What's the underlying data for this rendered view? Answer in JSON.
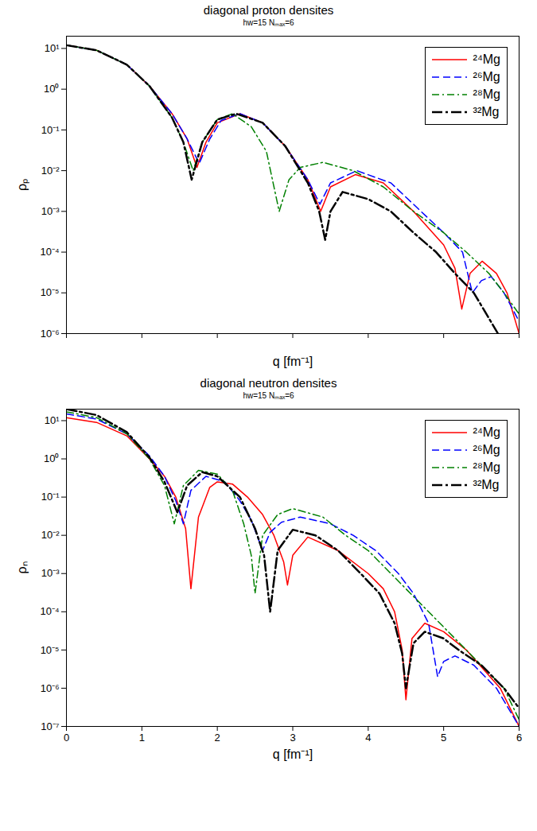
{
  "chart_data": [
    {
      "type": "line",
      "title": "diagonal proton densites",
      "subtitle": "hw=15 Nₘₐₓ=6",
      "x_label": "q [fm⁻¹]",
      "y_label": "ρₚ",
      "log": "y",
      "legend": "upper right",
      "tick_labels": "y",
      "xlim": [
        0,
        6
      ],
      "xticks": [
        0,
        1,
        2,
        3,
        4,
        5,
        6
      ],
      "ylim": [
        1e-06,
        20
      ],
      "yticks": [
        {
          "value": 1e-06,
          "label": "10⁻⁶"
        },
        {
          "value": 1e-05,
          "label": "10⁻⁵"
        },
        {
          "value": 0.0001,
          "label": "10⁻⁴"
        },
        {
          "value": 0.001,
          "label": "10⁻³"
        },
        {
          "value": 0.01,
          "label": "10⁻²"
        },
        {
          "value": 0.1,
          "label": "10⁻¹"
        },
        {
          "value": 1,
          "label": "10⁰"
        },
        {
          "value": 10,
          "label": "10¹"
        }
      ],
      "series": [
        {
          "name": "²⁴Mg",
          "color": "#ff0000",
          "line_style": "solid",
          "x": [
            0,
            0.4,
            0.8,
            1.1,
            1.4,
            1.6,
            1.73,
            1.85,
            2.0,
            2.3,
            2.6,
            2.9,
            3.2,
            3.37,
            3.5,
            3.83,
            4.2,
            4.6,
            5.0,
            5.15,
            5.24,
            5.35,
            5.51,
            5.7,
            5.84,
            6.0
          ],
          "values": [
            12,
            9,
            4,
            1.2,
            0.25,
            0.06,
            0.012,
            0.05,
            0.15,
            0.25,
            0.15,
            0.04,
            0.006,
            0.001,
            0.004,
            0.008,
            0.005,
            0.001,
            0.00015,
            4e-05,
            4e-06,
            3e-05,
            6e-05,
            3e-05,
            1e-05,
            1e-06
          ]
        },
        {
          "name": "²⁶Mg",
          "color": "#0000ff",
          "line_style": "dashed",
          "x": [
            0,
            0.4,
            0.8,
            1.1,
            1.4,
            1.6,
            1.76,
            1.9,
            2.05,
            2.3,
            2.6,
            2.9,
            3.2,
            3.36,
            3.5,
            3.85,
            4.3,
            4.7,
            5.0,
            5.25,
            5.38,
            5.5,
            5.63,
            5.8,
            6.0
          ],
          "values": [
            12,
            9,
            4,
            1.2,
            0.25,
            0.06,
            0.015,
            0.06,
            0.17,
            0.25,
            0.15,
            0.04,
            0.006,
            0.0015,
            0.005,
            0.01,
            0.005,
            0.001,
            0.0003,
            0.0001,
            1e-05,
            2e-05,
            2.5e-05,
            1e-05,
            2e-06
          ]
        },
        {
          "name": "²⁸Mg",
          "color": "#008000",
          "line_style": "dashdot",
          "x": [
            0,
            0.4,
            0.8,
            1.1,
            1.4,
            1.55,
            1.68,
            1.8,
            2.0,
            2.2,
            2.45,
            2.65,
            2.82,
            2.95,
            3.1,
            3.4,
            3.8,
            4.2,
            4.6,
            5.0,
            5.3,
            5.6,
            5.8,
            6.0
          ],
          "values": [
            12,
            9,
            4,
            1.2,
            0.2,
            0.05,
            0.01,
            0.05,
            0.18,
            0.25,
            0.12,
            0.03,
            0.001,
            0.006,
            0.012,
            0.016,
            0.01,
            0.004,
            0.001,
            0.0003,
            0.0001,
            3e-05,
            1e-05,
            3e-06
          ]
        },
        {
          "name": "³²Mg",
          "color": "#000000",
          "line_style": "longdashdot",
          "x": [
            0,
            0.4,
            0.8,
            1.1,
            1.4,
            1.55,
            1.66,
            1.8,
            2.0,
            2.25,
            2.6,
            2.9,
            3.2,
            3.35,
            3.43,
            3.5,
            3.66,
            4.0,
            4.3,
            4.6,
            4.9,
            5.15,
            5.4,
            5.72
          ],
          "values": [
            12,
            9,
            4,
            1.2,
            0.2,
            0.05,
            0.006,
            0.05,
            0.18,
            0.25,
            0.15,
            0.04,
            0.005,
            0.001,
            0.0002,
            0.001,
            0.003,
            0.002,
            0.001,
            0.0003,
            0.0001,
            3e-05,
            1e-05,
            1e-06
          ]
        }
      ]
    },
    {
      "type": "line",
      "title": "diagonal neutron densites",
      "subtitle": "hw=15 Nₘₐₓ=6",
      "x_label": "q [fm⁻¹]",
      "y_label": "ρₙ",
      "log": "y",
      "legend": "upper right",
      "xlim": [
        0,
        6
      ],
      "xticks": [
        0,
        1,
        2,
        3,
        4,
        5,
        6
      ],
      "ylim": [
        1e-07,
        20
      ],
      "yticks": [
        {
          "value": 1e-07,
          "label": "10⁻⁷"
        },
        {
          "value": 1e-06,
          "label": "10⁻⁶"
        },
        {
          "value": 1e-05,
          "label": "10⁻⁵"
        },
        {
          "value": 0.0001,
          "label": "10⁻⁴"
        },
        {
          "value": 0.001,
          "label": "10⁻³"
        },
        {
          "value": 0.01,
          "label": "10⁻²"
        },
        {
          "value": 0.1,
          "label": "10⁻¹"
        },
        {
          "value": 1,
          "label": "10⁰"
        },
        {
          "value": 10,
          "label": "10¹"
        }
      ],
      "series": [
        {
          "name": "²⁴Mg",
          "color": "#ff0000",
          "line_style": "solid",
          "x": [
            0,
            0.4,
            0.8,
            1.1,
            1.3,
            1.45,
            1.58,
            1.65,
            1.75,
            1.9,
            2.0,
            2.2,
            2.4,
            2.6,
            2.75,
            2.88,
            2.93,
            3.0,
            3.2,
            3.6,
            4.0,
            4.2,
            4.35,
            4.45,
            4.5,
            4.58,
            4.75,
            5.0,
            5.3,
            5.75,
            6.0
          ],
          "values": [
            12,
            9,
            4,
            1.0,
            0.35,
            0.1,
            0.015,
            0.0004,
            0.03,
            0.18,
            0.25,
            0.22,
            0.1,
            0.035,
            0.01,
            0.002,
            0.0005,
            0.003,
            0.009,
            0.004,
            0.001,
            0.0004,
            0.0001,
            1e-05,
            5e-07,
            2e-05,
            5e-05,
            3e-05,
            1e-05,
            1e-06,
            1e-07
          ]
        },
        {
          "name": "²⁶Mg",
          "color": "#0000ff",
          "line_style": "dashed",
          "x": [
            0,
            0.4,
            0.8,
            1.1,
            1.3,
            1.45,
            1.55,
            1.65,
            1.85,
            2.1,
            2.3,
            2.45,
            2.6,
            2.7,
            2.85,
            3.1,
            3.5,
            3.8,
            4.1,
            4.4,
            4.6,
            4.8,
            4.92,
            5.0,
            5.15,
            5.4,
            5.7,
            6.0
          ],
          "values": [
            15,
            11,
            4.5,
            1.2,
            0.35,
            0.08,
            0.02,
            0.15,
            0.35,
            0.25,
            0.08,
            0.025,
            0.004,
            0.012,
            0.022,
            0.03,
            0.02,
            0.01,
            0.004,
            0.001,
            0.0003,
            5e-05,
            2e-06,
            5e-06,
            7e-06,
            4e-06,
            1e-06,
            1e-07
          ]
        },
        {
          "name": "²⁸Mg",
          "color": "#008000",
          "line_style": "dashdot",
          "x": [
            0,
            0.4,
            0.8,
            1.1,
            1.3,
            1.43,
            1.55,
            1.75,
            2.0,
            2.2,
            2.35,
            2.45,
            2.5,
            2.6,
            2.8,
            3.0,
            3.4,
            3.7,
            4.0,
            4.3,
            4.8,
            5.3,
            5.8,
            6.0
          ],
          "values": [
            17,
            12,
            4.5,
            1.0,
            0.2,
            0.02,
            0.2,
            0.5,
            0.4,
            0.15,
            0.02,
            0.003,
            0.0003,
            0.01,
            0.035,
            0.05,
            0.03,
            0.01,
            0.004,
            0.001,
            0.0001,
            1e-05,
            1e-06,
            1.5e-07
          ]
        },
        {
          "name": "³²Mg",
          "color": "#000000",
          "line_style": "longdashdot",
          "x": [
            0,
            0.4,
            0.8,
            1.1,
            1.3,
            1.47,
            1.6,
            1.8,
            2.0,
            2.3,
            2.5,
            2.62,
            2.7,
            2.8,
            3.0,
            3.3,
            3.6,
            3.9,
            4.15,
            4.35,
            4.45,
            4.5,
            4.6,
            4.75,
            5.0,
            5.2,
            5.5,
            5.8,
            6.0
          ],
          "values": [
            20,
            14,
            5,
            1.1,
            0.25,
            0.04,
            0.2,
            0.45,
            0.35,
            0.1,
            0.015,
            0.003,
            0.0001,
            0.004,
            0.014,
            0.01,
            0.004,
            0.001,
            0.0003,
            5e-05,
            8e-06,
            1e-06,
            1.5e-05,
            3e-05,
            2e-05,
            1e-05,
            4e-06,
            1e-06,
            3e-07
          ]
        }
      ]
    }
  ]
}
